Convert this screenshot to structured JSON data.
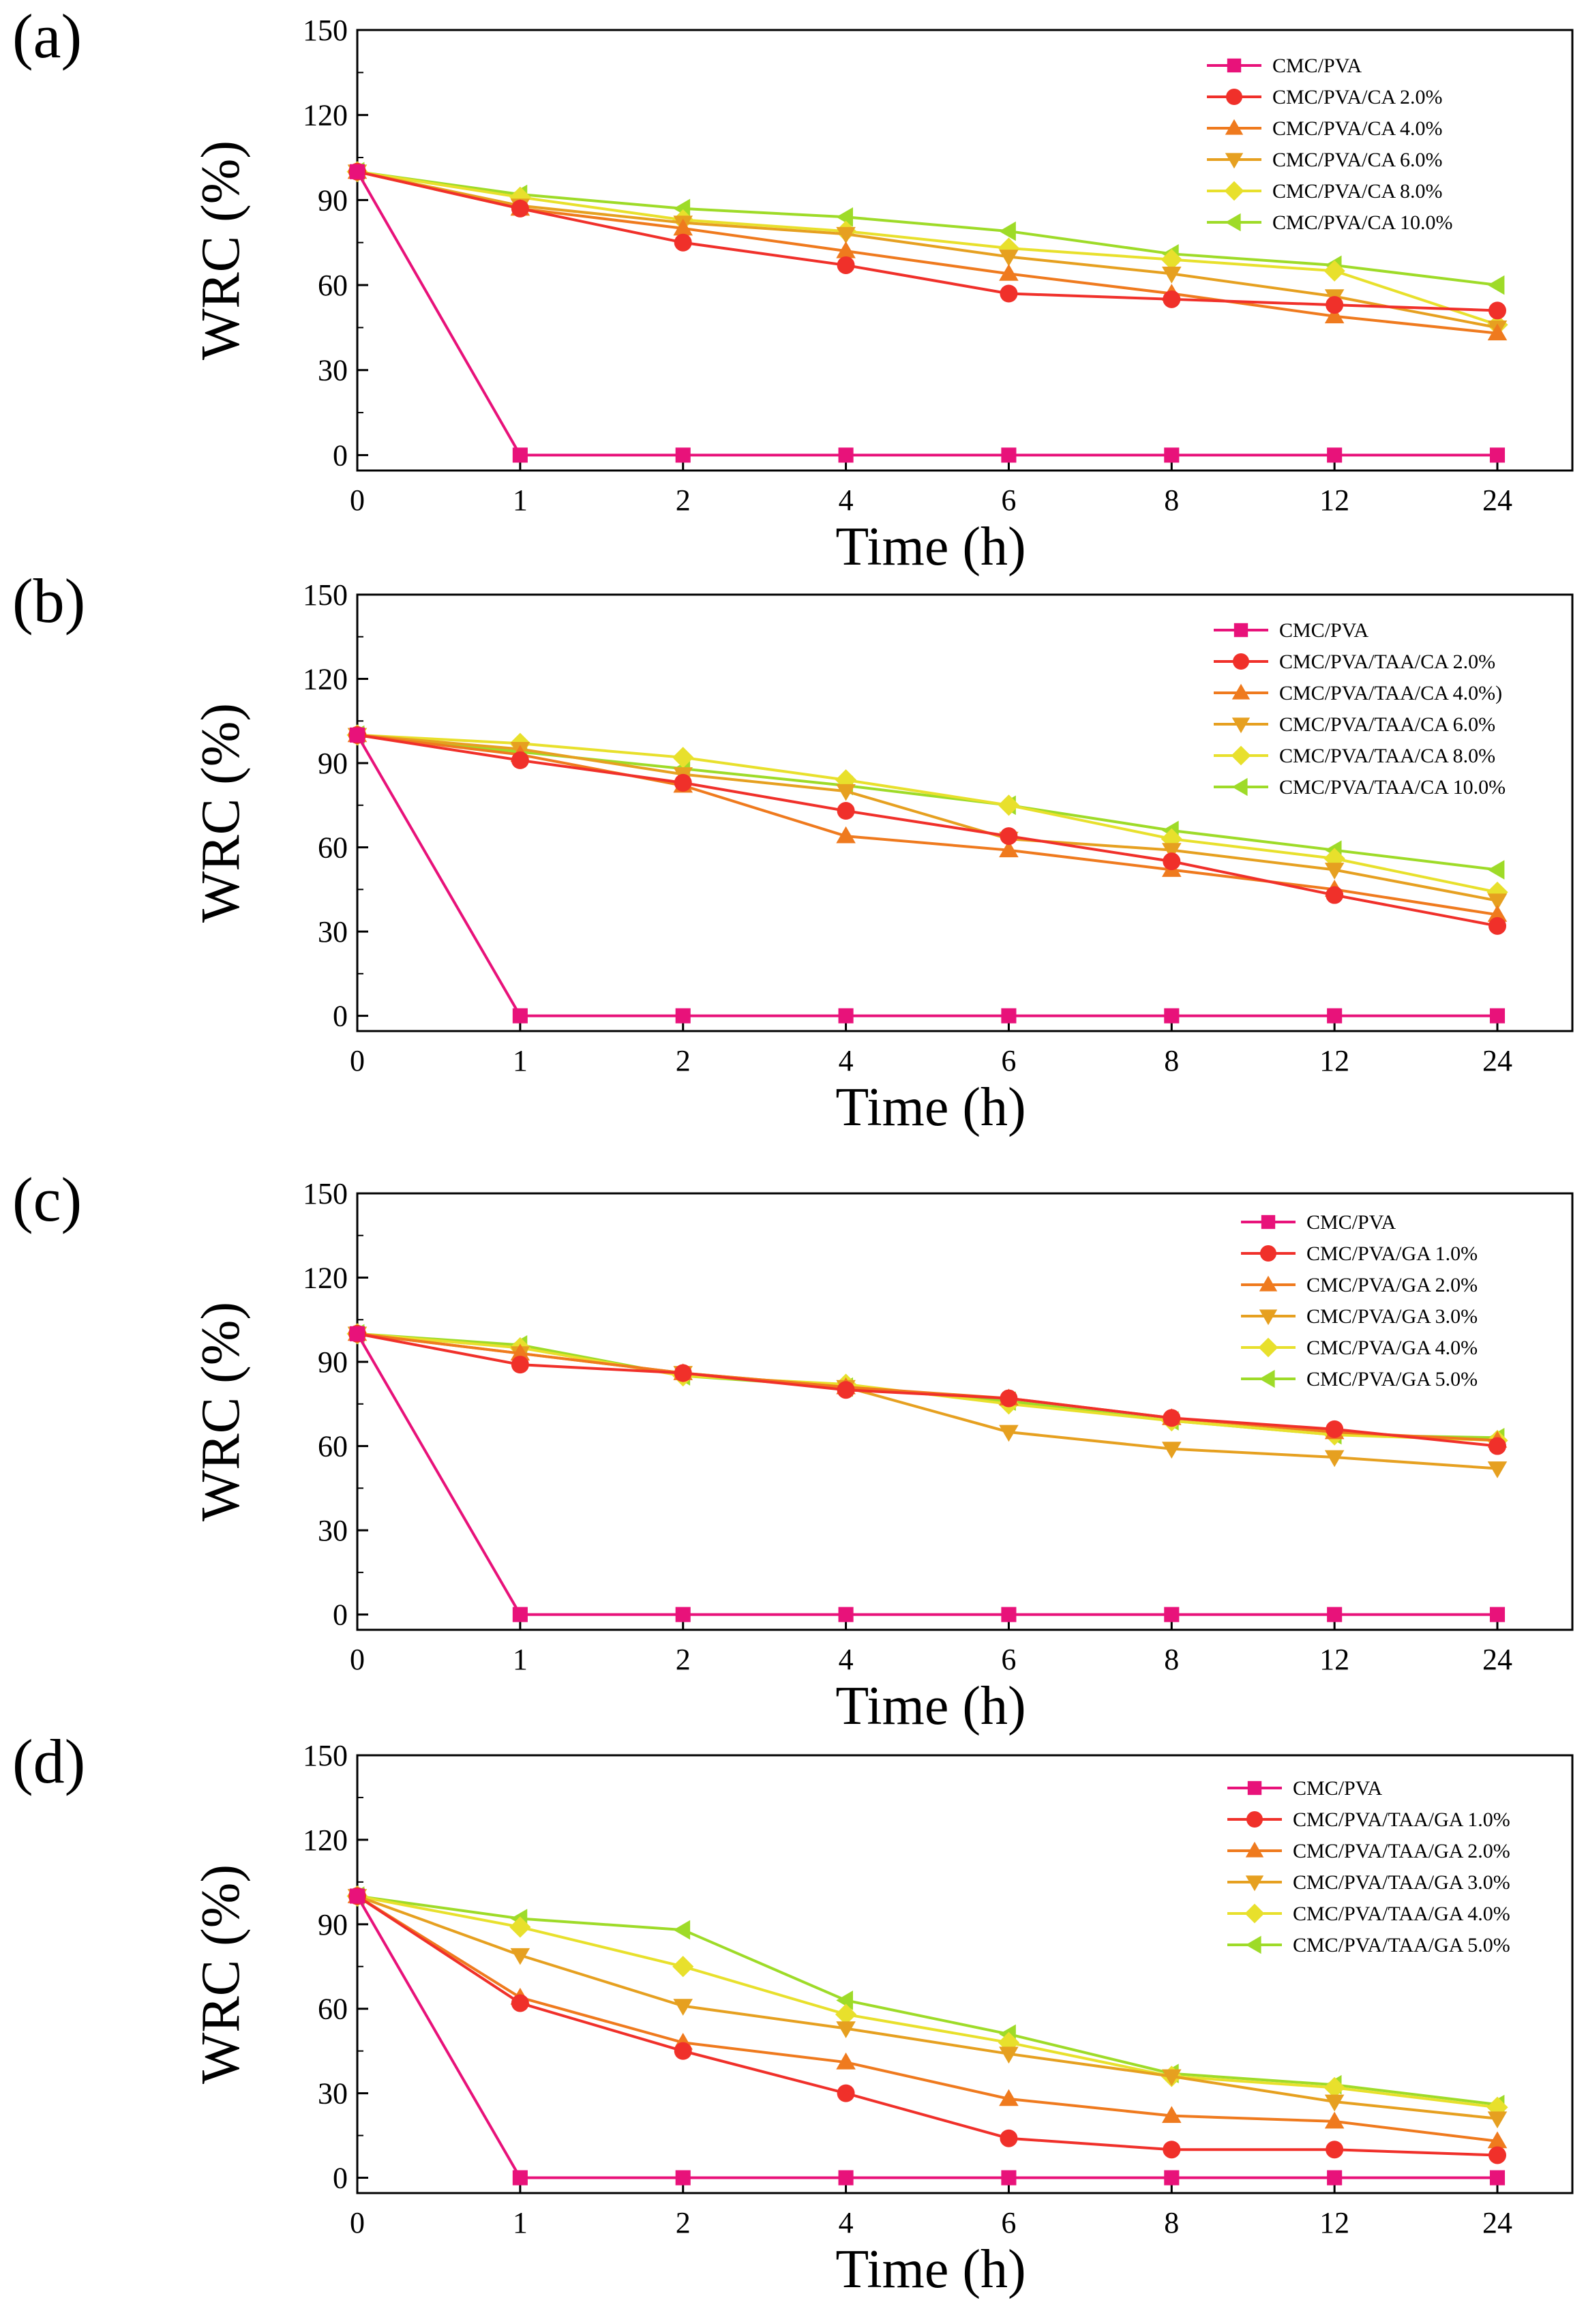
{
  "chart_data": [
    {
      "type": "line",
      "panel_label": "(a)",
      "xlabel": "Time (h)",
      "ylabel": "WRC (%)",
      "x": [
        "0",
        "1",
        "2",
        "4",
        "6",
        "8",
        "12",
        "24"
      ],
      "ylim": [
        0,
        150
      ],
      "yticks": [
        "0",
        "30",
        "60",
        "90",
        "120",
        "150"
      ],
      "legend_position": "top-right",
      "series": [
        {
          "name": "CMC/PVA",
          "color": "#e8127a",
          "marker": "square",
          "values": [
            100,
            0,
            0,
            0,
            0,
            0,
            0,
            0
          ]
        },
        {
          "name": "CMC/PVA/CA 2.0%",
          "color": "#f0302a",
          "marker": "circle",
          "values": [
            100,
            87,
            75,
            67,
            57,
            55,
            53,
            51
          ]
        },
        {
          "name": "CMC/PVA/CA 4.0%",
          "color": "#ef7a1e",
          "marker": "triangle-up",
          "values": [
            100,
            87,
            80,
            72,
            64,
            57,
            49,
            43
          ]
        },
        {
          "name": "CMC/PVA/CA 6.0%",
          "color": "#e6a020",
          "marker": "triangle-down",
          "values": [
            100,
            88,
            82,
            78,
            70,
            64,
            56,
            45
          ]
        },
        {
          "name": "CMC/PVA/CA 8.0%",
          "color": "#e8e02c",
          "marker": "diamond",
          "values": [
            100,
            91,
            83,
            79,
            73,
            69,
            65,
            46
          ]
        },
        {
          "name": "CMC/PVA/CA 10.0%",
          "color": "#9edb28",
          "marker": "triangle-left",
          "values": [
            100,
            92,
            87,
            84,
            79,
            71,
            67,
            60
          ]
        }
      ]
    },
    {
      "type": "line",
      "panel_label": "(b)",
      "xlabel": "Time (h)",
      "ylabel": "WRC (%)",
      "x": [
        "0",
        "1",
        "2",
        "4",
        "6",
        "8",
        "12",
        "24"
      ],
      "ylim": [
        0,
        150
      ],
      "yticks": [
        "0",
        "30",
        "60",
        "90",
        "120",
        "150"
      ],
      "legend_position": "top-right",
      "series": [
        {
          "name": "CMC/PVA",
          "color": "#e8127a",
          "marker": "square",
          "values": [
            100,
            0,
            0,
            0,
            0,
            0,
            0,
            0
          ]
        },
        {
          "name": "CMC/PVA/TAA/CA 2.0%",
          "color": "#f0302a",
          "marker": "circle",
          "values": [
            100,
            91,
            83,
            73,
            64,
            55,
            43,
            32
          ]
        },
        {
          "name": "CMC/PVA/TAA/CA 4.0%)",
          "color": "#ef7a1e",
          "marker": "triangle-up",
          "values": [
            100,
            93,
            82,
            64,
            59,
            52,
            45,
            36
          ]
        },
        {
          "name": "CMC/PVA/TAA/CA 6.0%",
          "color": "#e6a020",
          "marker": "triangle-down",
          "values": [
            100,
            95,
            86,
            80,
            63,
            59,
            52,
            41
          ]
        },
        {
          "name": "CMC/PVA/TAA/CA 8.0%",
          "color": "#e8e02c",
          "marker": "diamond",
          "values": [
            100,
            97,
            92,
            84,
            75,
            63,
            56,
            44
          ]
        },
        {
          "name": "CMC/PVA/TAA/CA 10.0%",
          "color": "#9edb28",
          "marker": "triangle-left",
          "values": [
            100,
            94,
            88,
            82,
            75,
            66,
            59,
            52
          ]
        }
      ]
    },
    {
      "type": "line",
      "panel_label": "(c)",
      "xlabel": "Time (h)",
      "ylabel": "WRC (%)",
      "x": [
        "0",
        "1",
        "2",
        "4",
        "6",
        "8",
        "12",
        "24"
      ],
      "ylim": [
        0,
        150
      ],
      "yticks": [
        "0",
        "30",
        "60",
        "90",
        "120",
        "150"
      ],
      "legend_position": "top-right",
      "series": [
        {
          "name": "CMC/PVA",
          "color": "#e8127a",
          "marker": "square",
          "values": [
            100,
            0,
            0,
            0,
            0,
            0,
            0,
            0
          ]
        },
        {
          "name": "CMC/PVA/GA 1.0%",
          "color": "#f0302a",
          "marker": "circle",
          "values": [
            100,
            89,
            86,
            80,
            77,
            70,
            66,
            60
          ]
        },
        {
          "name": "CMC/PVA/GA 2.0%",
          "color": "#ef7a1e",
          "marker": "triangle-up",
          "values": [
            100,
            93,
            86,
            81,
            77,
            70,
            65,
            62
          ]
        },
        {
          "name": "CMC/PVA/GA 3.0%",
          "color": "#e6a020",
          "marker": "triangle-down",
          "values": [
            100,
            93,
            86,
            81,
            65,
            59,
            56,
            52
          ]
        },
        {
          "name": "CMC/PVA/GA 4.0%",
          "color": "#e8e02c",
          "marker": "diamond",
          "values": [
            100,
            95,
            85,
            82,
            75,
            69,
            64,
            62
          ]
        },
        {
          "name": "CMC/PVA/GA 5.0%",
          "color": "#9edb28",
          "marker": "triangle-left",
          "values": [
            100,
            96,
            85,
            81,
            76,
            69,
            64,
            63
          ]
        }
      ]
    },
    {
      "type": "line",
      "panel_label": "(d)",
      "xlabel": "Time (h)",
      "ylabel": "WRC (%)",
      "x": [
        "0",
        "1",
        "2",
        "4",
        "6",
        "8",
        "12",
        "24"
      ],
      "ylim": [
        0,
        150
      ],
      "yticks": [
        "0",
        "30",
        "60",
        "90",
        "120",
        "150"
      ],
      "legend_position": "top-right",
      "series": [
        {
          "name": "CMC/PVA",
          "color": "#e8127a",
          "marker": "square",
          "values": [
            100,
            0,
            0,
            0,
            0,
            0,
            0,
            0
          ]
        },
        {
          "name": "CMC/PVA/TAA/GA 1.0%",
          "color": "#f0302a",
          "marker": "circle",
          "values": [
            100,
            62,
            45,
            30,
            14,
            10,
            10,
            8
          ]
        },
        {
          "name": "CMC/PVA/TAA/GA 2.0%",
          "color": "#ef7a1e",
          "marker": "triangle-up",
          "values": [
            100,
            64,
            48,
            41,
            28,
            22,
            20,
            13
          ]
        },
        {
          "name": "CMC/PVA/TAA/GA 3.0%",
          "color": "#e6a020",
          "marker": "triangle-down",
          "values": [
            100,
            79,
            61,
            53,
            44,
            36,
            27,
            21
          ]
        },
        {
          "name": "CMC/PVA/TAA/GA 4.0%",
          "color": "#e8e02c",
          "marker": "diamond",
          "values": [
            100,
            89,
            75,
            58,
            48,
            36,
            32,
            25
          ]
        },
        {
          "name": "CMC/PVA/TAA/GA 5.0%",
          "color": "#9edb28",
          "marker": "triangle-left",
          "values": [
            100,
            92,
            88,
            63,
            51,
            37,
            33,
            26
          ]
        }
      ]
    }
  ]
}
